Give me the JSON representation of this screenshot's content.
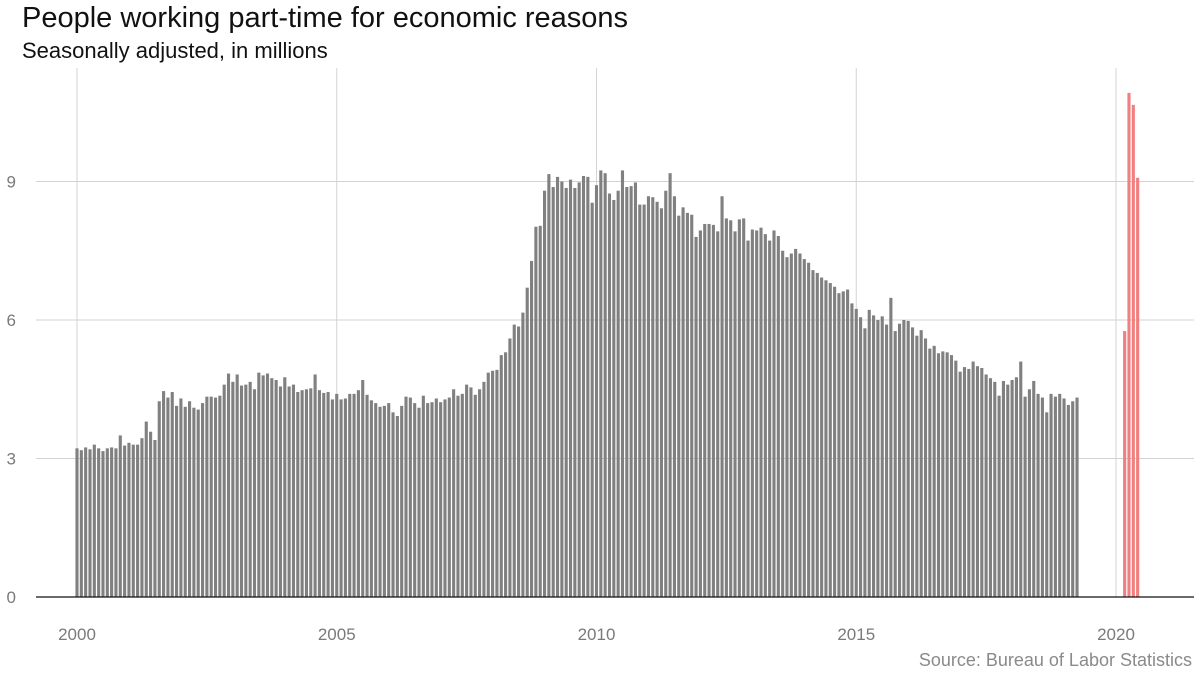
{
  "chart_data": {
    "type": "bar",
    "title": "People working part-time for economic reasons",
    "subtitle": "Seasonally adjusted, in millions",
    "source": "Source: Bureau of Labor Statistics",
    "xlabel": "",
    "ylabel": "",
    "x_ticks": [
      2000,
      2005,
      2010,
      2015,
      2020
    ],
    "y_ticks": [
      0,
      3,
      6,
      9
    ],
    "xlim": [
      1999.25,
      2021.6
    ],
    "ylim": [
      0,
      11.4
    ],
    "grid": true,
    "series": [
      {
        "start": "2000-01",
        "color": "#808080",
        "values": [
          3.22,
          3.18,
          3.24,
          3.2,
          3.3,
          3.22,
          3.16,
          3.22,
          3.24,
          3.22,
          3.5,
          3.28,
          3.34,
          3.3,
          3.3,
          3.44,
          3.8,
          3.58,
          3.4,
          4.24,
          4.46,
          4.32,
          4.44,
          4.14,
          4.3,
          4.12,
          4.24,
          4.1,
          4.06,
          4.2,
          4.34,
          4.34,
          4.32,
          4.36,
          4.6,
          4.84,
          4.66,
          4.82,
          4.58,
          4.6,
          4.66,
          4.5,
          4.86,
          4.8,
          4.84,
          4.74,
          4.7,
          4.56,
          4.76,
          4.56,
          4.6,
          4.44,
          4.48,
          4.5,
          4.52,
          4.82,
          4.48,
          4.42,
          4.44,
          4.28,
          4.4,
          4.28,
          4.3,
          4.4,
          4.4,
          4.48,
          4.7,
          4.38,
          4.26,
          4.2,
          4.12,
          4.14,
          4.2,
          4.0,
          3.92,
          4.14,
          4.34,
          4.32,
          4.2,
          4.1,
          4.36,
          4.2,
          4.22,
          4.3,
          4.22,
          4.28,
          4.32,
          4.5,
          4.36,
          4.4,
          4.6,
          4.54,
          4.38,
          4.5,
          4.66,
          4.86,
          4.9,
          4.92,
          5.24,
          5.3,
          5.6,
          5.9,
          5.86,
          6.16,
          6.7,
          7.28,
          8.02,
          8.04,
          8.8,
          9.16,
          8.88,
          9.1,
          9.0,
          8.86,
          9.04,
          8.86,
          8.98,
          9.12,
          9.1,
          8.54,
          8.92,
          9.24,
          9.18,
          8.74,
          8.6,
          8.8,
          9.24,
          8.88,
          8.9,
          8.98,
          8.5,
          8.5,
          8.68,
          8.66,
          8.56,
          8.42,
          8.8,
          9.18,
          8.68,
          8.26,
          8.44,
          8.32,
          8.28,
          7.8,
          7.94,
          8.08,
          8.08,
          8.06,
          7.92,
          8.68,
          8.2,
          8.16,
          7.92,
          8.18,
          8.2,
          7.72,
          7.96,
          7.94,
          8.0,
          7.86,
          7.72,
          7.94,
          7.82,
          7.5,
          7.36,
          7.44,
          7.54,
          7.44,
          7.32,
          7.24,
          7.08,
          7.02,
          6.92,
          6.86,
          6.8,
          6.72,
          6.58,
          6.62,
          6.66,
          6.36,
          6.24,
          6.06,
          5.82,
          6.22,
          6.1,
          6.0,
          6.08,
          5.9,
          6.48,
          5.76,
          5.92,
          6.0,
          5.98,
          5.84,
          5.66,
          5.78,
          5.6,
          5.38,
          5.44,
          5.28,
          5.32,
          5.3,
          5.24,
          5.12,
          4.88,
          4.98,
          4.94,
          5.1,
          5.0,
          4.96,
          4.82,
          4.74,
          4.66,
          4.36,
          4.68,
          4.6,
          4.7,
          4.76,
          5.1,
          4.34,
          4.5,
          4.68,
          4.4,
          4.32,
          4.0,
          4.4,
          4.34,
          4.4,
          4.3,
          4.16,
          4.24,
          4.32
        ]
      },
      {
        "start": "2020-03",
        "color": "#f08080",
        "values": [
          5.76,
          10.92,
          10.66,
          9.08
        ]
      }
    ]
  }
}
